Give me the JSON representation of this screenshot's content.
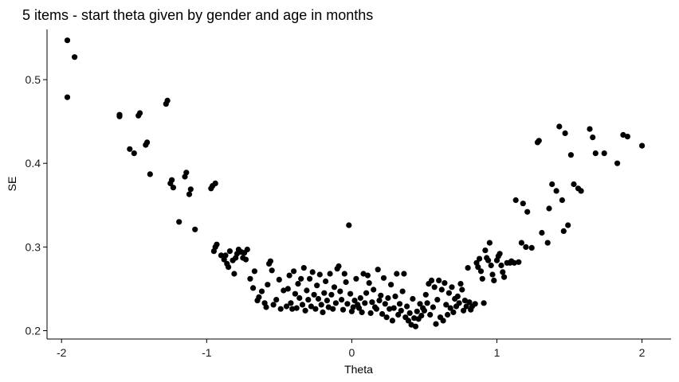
{
  "chart_data": {
    "type": "scatter",
    "title": "5 items - start theta given by gender and age in months",
    "xlabel": "Theta",
    "ylabel": "SE",
    "xlim": [
      -2.1,
      2.2
    ],
    "ylim": [
      0.19,
      0.56
    ],
    "xticks": [
      -2,
      -1,
      0,
      1,
      2
    ],
    "xtick_labels": [
      "-2",
      "-1",
      "0",
      "1",
      "2"
    ],
    "yticks": [
      0.2,
      0.3,
      0.4,
      0.5
    ],
    "ytick_labels": [
      "0.2",
      "0.3",
      "0.4",
      "0.5"
    ],
    "grid": false,
    "legend": "none",
    "point_color": "#000000",
    "points": [
      [
        -1.96,
        0.547
      ],
      [
        -1.96,
        0.479
      ],
      [
        -1.91,
        0.527
      ],
      [
        -1.6,
        0.458
      ],
      [
        -1.6,
        0.456
      ],
      [
        -1.53,
        0.417
      ],
      [
        -1.5,
        0.412
      ],
      [
        -1.47,
        0.457
      ],
      [
        -1.46,
        0.46
      ],
      [
        -1.42,
        0.422
      ],
      [
        -1.41,
        0.425
      ],
      [
        -1.39,
        0.387
      ],
      [
        -1.28,
        0.471
      ],
      [
        -1.27,
        0.475
      ],
      [
        -1.25,
        0.376
      ],
      [
        -1.24,
        0.38
      ],
      [
        -1.23,
        0.371
      ],
      [
        -1.19,
        0.33
      ],
      [
        -1.15,
        0.384
      ],
      [
        -1.14,
        0.389
      ],
      [
        -1.12,
        0.363
      ],
      [
        -1.11,
        0.369
      ],
      [
        -1.08,
        0.321
      ],
      [
        -0.97,
        0.37
      ],
      [
        -0.96,
        0.373
      ],
      [
        -0.94,
        0.376
      ],
      [
        -0.95,
        0.295
      ],
      [
        -0.94,
        0.3
      ],
      [
        -0.93,
        0.303
      ],
      [
        -0.9,
        0.29
      ],
      [
        -0.88,
        0.285
      ],
      [
        -0.87,
        0.29
      ],
      [
        -0.86,
        0.28
      ],
      [
        -0.85,
        0.276
      ],
      [
        -0.84,
        0.295
      ],
      [
        -0.82,
        0.284
      ],
      [
        -0.81,
        0.268
      ],
      [
        -0.8,
        0.287
      ],
      [
        -0.79,
        0.292
      ],
      [
        -0.78,
        0.297
      ],
      [
        -0.76,
        0.294
      ],
      [
        -0.75,
        0.287
      ],
      [
        -0.74,
        0.293
      ],
      [
        -0.73,
        0.285
      ],
      [
        -0.72,
        0.297
      ],
      [
        -0.7,
        0.262
      ],
      [
        -0.68,
        0.251
      ],
      [
        -0.67,
        0.271
      ],
      [
        -0.65,
        0.236
      ],
      [
        -0.64,
        0.24
      ],
      [
        -0.62,
        0.247
      ],
      [
        -0.6,
        0.233
      ],
      [
        -0.59,
        0.228
      ],
      [
        -0.58,
        0.255
      ],
      [
        -0.57,
        0.28
      ],
      [
        -0.56,
        0.283
      ],
      [
        -0.55,
        0.272
      ],
      [
        -0.54,
        0.231
      ],
      [
        -0.52,
        0.237
      ],
      [
        -0.5,
        0.261
      ],
      [
        -0.49,
        0.226
      ],
      [
        -0.47,
        0.248
      ],
      [
        -0.45,
        0.229
      ],
      [
        -0.44,
        0.25
      ],
      [
        -0.43,
        0.266
      ],
      [
        -0.42,
        0.233
      ],
      [
        -0.41,
        0.226
      ],
      [
        -0.4,
        0.271
      ],
      [
        -0.39,
        0.244
      ],
      [
        -0.38,
        0.227
      ],
      [
        -0.37,
        0.256
      ],
      [
        -0.36,
        0.239
      ],
      [
        -0.35,
        0.262
      ],
      [
        -0.34,
        0.231
      ],
      [
        -0.33,
        0.275
      ],
      [
        -0.32,
        0.224
      ],
      [
        -0.31,
        0.248
      ],
      [
        -0.3,
        0.237
      ],
      [
        -0.29,
        0.262
      ],
      [
        -0.28,
        0.229
      ],
      [
        -0.27,
        0.27
      ],
      [
        -0.26,
        0.243
      ],
      [
        -0.25,
        0.226
      ],
      [
        -0.24,
        0.254
      ],
      [
        -0.23,
        0.238
      ],
      [
        -0.22,
        0.267
      ],
      [
        -0.21,
        0.231
      ],
      [
        -0.2,
        0.222
      ],
      [
        -0.19,
        0.245
      ],
      [
        -0.18,
        0.259
      ],
      [
        -0.17,
        0.236
      ],
      [
        -0.16,
        0.228
      ],
      [
        -0.15,
        0.268
      ],
      [
        -0.14,
        0.243
      ],
      [
        -0.13,
        0.226
      ],
      [
        -0.12,
        0.252
      ],
      [
        -0.11,
        0.233
      ],
      [
        -0.1,
        0.274
      ],
      [
        -0.09,
        0.277
      ],
      [
        -0.08,
        0.247
      ],
      [
        -0.07,
        0.237
      ],
      [
        -0.06,
        0.225
      ],
      [
        -0.05,
        0.268
      ],
      [
        -0.04,
        0.258
      ],
      [
        -0.03,
        0.232
      ],
      [
        -0.02,
        0.326
      ],
      [
        -0.01,
        0.244
      ],
      [
        0.0,
        0.223
      ],
      [
        0.01,
        0.228
      ],
      [
        0.02,
        0.236
      ],
      [
        0.03,
        0.262
      ],
      [
        0.04,
        0.231
      ],
      [
        0.05,
        0.227
      ],
      [
        0.06,
        0.239
      ],
      [
        0.07,
        0.222
      ],
      [
        0.08,
        0.268
      ],
      [
        0.09,
        0.233
      ],
      [
        0.1,
        0.245
      ],
      [
        0.11,
        0.266
      ],
      [
        0.12,
        0.257
      ],
      [
        0.13,
        0.221
      ],
      [
        0.14,
        0.234
      ],
      [
        0.15,
        0.249
      ],
      [
        0.16,
        0.228
      ],
      [
        0.17,
        0.226
      ],
      [
        0.18,
        0.273
      ],
      [
        0.19,
        0.236
      ],
      [
        0.2,
        0.242
      ],
      [
        0.21,
        0.22
      ],
      [
        0.22,
        0.263
      ],
      [
        0.23,
        0.232
      ],
      [
        0.24,
        0.216
      ],
      [
        0.25,
        0.239
      ],
      [
        0.26,
        0.226
      ],
      [
        0.27,
        0.255
      ],
      [
        0.28,
        0.212
      ],
      [
        0.29,
        0.227
      ],
      [
        0.3,
        0.241
      ],
      [
        0.31,
        0.268
      ],
      [
        0.32,
        0.219
      ],
      [
        0.33,
        0.232
      ],
      [
        0.34,
        0.224
      ],
      [
        0.35,
        0.247
      ],
      [
        0.36,
        0.268
      ],
      [
        0.37,
        0.216
      ],
      [
        0.38,
        0.229
      ],
      [
        0.39,
        0.212
      ],
      [
        0.4,
        0.221
      ],
      [
        0.41,
        0.207
      ],
      [
        0.42,
        0.238
      ],
      [
        0.43,
        0.215
      ],
      [
        0.44,
        0.205
      ],
      [
        0.45,
        0.223
      ],
      [
        0.46,
        0.214
      ],
      [
        0.47,
        0.232
      ],
      [
        0.48,
        0.218
      ],
      [
        0.49,
        0.227
      ],
      [
        0.5,
        0.224
      ],
      [
        0.51,
        0.243
      ],
      [
        0.52,
        0.233
      ],
      [
        0.53,
        0.256
      ],
      [
        0.54,
        0.219
      ],
      [
        0.55,
        0.26
      ],
      [
        0.56,
        0.228
      ],
      [
        0.57,
        0.252
      ],
      [
        0.58,
        0.208
      ],
      [
        0.59,
        0.237
      ],
      [
        0.6,
        0.26
      ],
      [
        0.61,
        0.216
      ],
      [
        0.62,
        0.249
      ],
      [
        0.63,
        0.212
      ],
      [
        0.64,
        0.257
      ],
      [
        0.65,
        0.231
      ],
      [
        0.66,
        0.219
      ],
      [
        0.67,
        0.245
      ],
      [
        0.68,
        0.227
      ],
      [
        0.69,
        0.252
      ],
      [
        0.7,
        0.222
      ],
      [
        0.71,
        0.238
      ],
      [
        0.72,
        0.229
      ],
      [
        0.73,
        0.241
      ],
      [
        0.74,
        0.233
      ],
      [
        0.75,
        0.256
      ],
      [
        0.76,
        0.249
      ],
      [
        0.77,
        0.224
      ],
      [
        0.78,
        0.236
      ],
      [
        0.79,
        0.229
      ],
      [
        0.8,
        0.275
      ],
      [
        0.81,
        0.234
      ],
      [
        0.82,
        0.225
      ],
      [
        0.83,
        0.229
      ],
      [
        0.85,
        0.232
      ],
      [
        0.86,
        0.281
      ],
      [
        0.87,
        0.276
      ],
      [
        0.88,
        0.286
      ],
      [
        0.89,
        0.271
      ],
      [
        0.9,
        0.262
      ],
      [
        0.91,
        0.233
      ],
      [
        0.92,
        0.296
      ],
      [
        0.93,
        0.287
      ],
      [
        0.94,
        0.284
      ],
      [
        0.95,
        0.305
      ],
      [
        0.96,
        0.278
      ],
      [
        0.97,
        0.267
      ],
      [
        0.98,
        0.26
      ],
      [
        1.0,
        0.284
      ],
      [
        1.01,
        0.289
      ],
      [
        1.02,
        0.292
      ],
      [
        1.03,
        0.278
      ],
      [
        1.04,
        0.27
      ],
      [
        1.05,
        0.264
      ],
      [
        1.07,
        0.281
      ],
      [
        1.09,
        0.281
      ],
      [
        1.1,
        0.283
      ],
      [
        1.12,
        0.281
      ],
      [
        1.13,
        0.356
      ],
      [
        1.15,
        0.282
      ],
      [
        1.17,
        0.305
      ],
      [
        1.18,
        0.352
      ],
      [
        1.2,
        0.3
      ],
      [
        1.21,
        0.342
      ],
      [
        1.24,
        0.299
      ],
      [
        1.28,
        0.425
      ],
      [
        1.29,
        0.427
      ],
      [
        1.31,
        0.317
      ],
      [
        1.35,
        0.305
      ],
      [
        1.36,
        0.346
      ],
      [
        1.38,
        0.375
      ],
      [
        1.41,
        0.367
      ],
      [
        1.43,
        0.444
      ],
      [
        1.45,
        0.356
      ],
      [
        1.46,
        0.319
      ],
      [
        1.47,
        0.436
      ],
      [
        1.49,
        0.326
      ],
      [
        1.51,
        0.41
      ],
      [
        1.53,
        0.375
      ],
      [
        1.56,
        0.37
      ],
      [
        1.58,
        0.367
      ],
      [
        1.64,
        0.441
      ],
      [
        1.66,
        0.431
      ],
      [
        1.68,
        0.412
      ],
      [
        1.74,
        0.412
      ],
      [
        1.83,
        0.4
      ],
      [
        1.87,
        0.434
      ],
      [
        1.9,
        0.432
      ],
      [
        2.0,
        0.421
      ]
    ]
  }
}
